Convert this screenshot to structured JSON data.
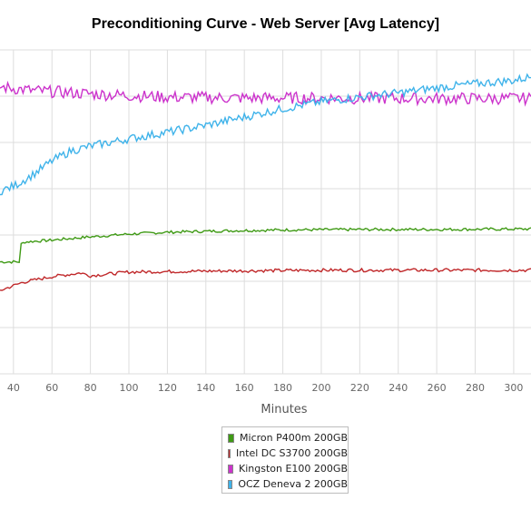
{
  "chart_data": {
    "type": "line",
    "title": "Preconditioning Curve - Web Server [Avg Latency]",
    "xlabel": "Minutes",
    "ylabel": "",
    "x_ticks": [
      40,
      60,
      80,
      100,
      120,
      140,
      160,
      180,
      200,
      220,
      240,
      260,
      280,
      300
    ],
    "xlim": [
      33,
      309
    ],
    "ylim": [
      0,
      7
    ],
    "grid": true,
    "legend_position": "bottom-center",
    "series": [
      {
        "name": "Micron P400m 200GB",
        "color": "#3f9a15",
        "x": [
          33,
          43,
          44,
          46,
          60,
          80,
          100,
          120,
          150,
          180,
          220,
          260,
          309
        ],
        "y": [
          2.42,
          2.42,
          2.8,
          2.85,
          2.89,
          2.96,
          3.02,
          3.06,
          3.09,
          3.11,
          3.12,
          3.12,
          3.13
        ]
      },
      {
        "name": "Intel DC S3700 200GB",
        "color": "#c0282a",
        "x": [
          33,
          45,
          60,
          75,
          80,
          100,
          140,
          200,
          309
        ],
        "y": [
          1.8,
          1.98,
          2.1,
          2.18,
          2.12,
          2.2,
          2.22,
          2.24,
          2.24
        ]
      },
      {
        "name": "Kingston E100 200GB",
        "color": "#cc33cc",
        "x": [
          33,
          50,
          80,
          120,
          160,
          200,
          260,
          309
        ],
        "y": [
          6.2,
          6.12,
          6.05,
          5.98,
          5.96,
          5.96,
          5.95,
          5.95
        ]
      },
      {
        "name": "OCZ Deneva 2 200GB",
        "color": "#3fb3ea",
        "x": [
          33,
          40,
          50,
          60,
          70,
          80,
          100,
          120,
          140,
          160,
          180,
          200,
          220,
          240,
          260,
          280,
          300,
          309
        ],
        "y": [
          3.95,
          4.05,
          4.3,
          4.6,
          4.82,
          4.92,
          5.08,
          5.22,
          5.37,
          5.55,
          5.73,
          5.88,
          5.98,
          6.07,
          6.18,
          6.27,
          6.34,
          6.42
        ]
      }
    ]
  }
}
